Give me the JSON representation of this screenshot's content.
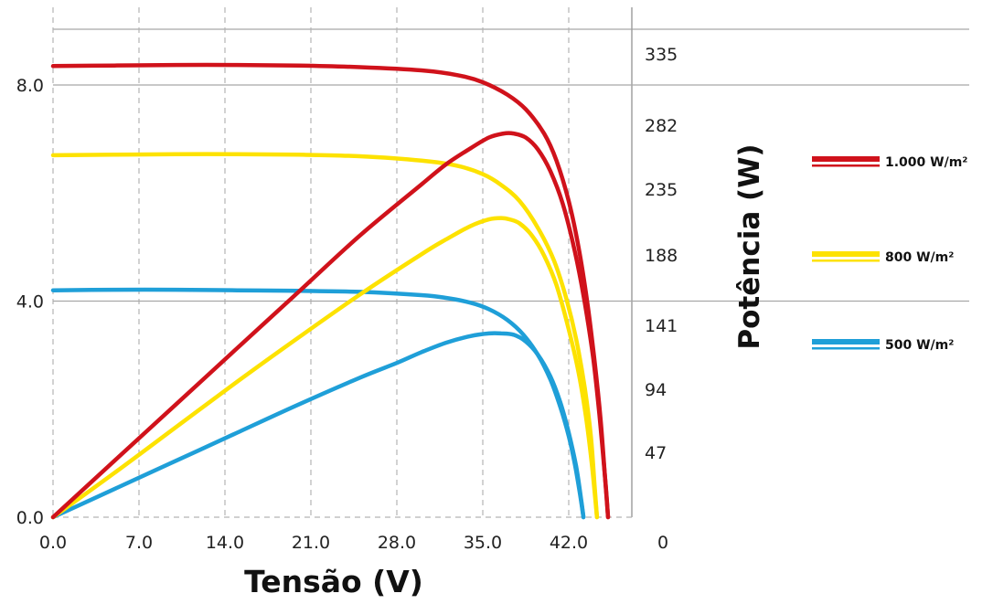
{
  "chart_data": {
    "type": "line",
    "title": "",
    "xlabel": "Tensão (V)",
    "ylabel_right": "Potência (W)",
    "ylabel_left": "",
    "xlim": [
      0,
      49
    ],
    "ylim_left": [
      0,
      9.4
    ],
    "ylim_right": [
      0,
      360
    ],
    "x_ticks": [
      "0.0",
      "7.0",
      "14.0",
      "21.0",
      "28.0",
      "35.0",
      "42.0"
    ],
    "y_left_ticks": [
      "0.0",
      "4.0",
      "8.0"
    ],
    "y_right_ticks": [
      "0",
      "47",
      "94",
      "141",
      "188",
      "235",
      "282",
      "335"
    ],
    "grid": "vertical dashed at x ticks; horizontal solid at left ticks",
    "legend_position": "right",
    "series": [
      {
        "name": "1.000 W/m²",
        "color": "#d0121b",
        "current_A": {
          "x": [
            0,
            5,
            10,
            15,
            20,
            25,
            30,
            33,
            35,
            37,
            38.5,
            40,
            41,
            42,
            42.8,
            43.5,
            44.1,
            44.6,
            45,
            45.2
          ],
          "y": [
            8.35,
            8.36,
            8.37,
            8.37,
            8.36,
            8.33,
            8.27,
            8.18,
            8.05,
            7.82,
            7.55,
            7.1,
            6.6,
            5.85,
            5.0,
            4.0,
            2.9,
            1.8,
            0.6,
            0.0
          ]
        },
        "power_W": {
          "x": [
            0,
            5,
            10,
            15,
            20,
            25,
            30,
            32,
            34,
            35.5,
            36.7,
            37.5,
            38.5,
            39.5,
            40.5,
            41.5,
            42.5,
            43.3,
            44,
            44.5,
            45,
            45.2
          ],
          "y": [
            0,
            42,
            84,
            126,
            168,
            210,
            248,
            263,
            275,
            283,
            286,
            286,
            283,
            274,
            258,
            234,
            198,
            160,
            118,
            76,
            25,
            0
          ]
        }
      },
      {
        "name": "800 W/m²",
        "color": "#fde200",
        "current_A": {
          "x": [
            0,
            5,
            10,
            15,
            20,
            25,
            30,
            33,
            35,
            36.5,
            38,
            39.5,
            40.8,
            41.8,
            42.6,
            43.3,
            43.8,
            44.1,
            44.3
          ],
          "y": [
            6.7,
            6.71,
            6.72,
            6.72,
            6.71,
            6.68,
            6.6,
            6.5,
            6.35,
            6.15,
            5.85,
            5.35,
            4.75,
            4.05,
            3.3,
            2.4,
            1.5,
            0.6,
            0.0
          ]
        },
        "power_W": {
          "x": [
            0,
            5,
            10,
            15,
            20,
            25,
            30,
            32,
            34,
            35.5,
            36.5,
            37.2,
            38,
            39,
            40,
            41,
            42,
            42.8,
            43.4,
            43.9,
            44.3
          ],
          "y": [
            0,
            33,
            67,
            101,
            134,
            166,
            196,
            207,
            217,
            222,
            223,
            222,
            219,
            210,
            195,
            173,
            140,
            108,
            75,
            38,
            0
          ]
        }
      },
      {
        "name": "500 W/m²",
        "color": "#1f9fd8",
        "current_A": {
          "x": [
            0,
            5,
            10,
            15,
            20,
            25,
            30,
            32,
            34,
            35.5,
            37,
            38.3,
            39.5,
            40.5,
            41.3,
            42,
            42.5,
            42.9,
            43.2
          ],
          "y": [
            4.2,
            4.21,
            4.21,
            4.2,
            4.19,
            4.17,
            4.11,
            4.06,
            3.97,
            3.85,
            3.65,
            3.38,
            3.0,
            2.55,
            2.05,
            1.5,
            0.98,
            0.45,
            0.0
          ]
        },
        "power_W": {
          "x": [
            0,
            5,
            10,
            15,
            20,
            25,
            28,
            30,
            32,
            34,
            35.5,
            36.5,
            37.5,
            38.5,
            39.5,
            40.5,
            41.3,
            42,
            42.6,
            43,
            43.2
          ],
          "y": [
            0,
            21,
            42,
            63,
            84,
            104,
            115,
            123,
            130,
            135,
            137,
            137,
            136,
            131,
            121,
            105,
            86,
            63,
            38,
            14,
            0
          ]
        }
      }
    ]
  }
}
